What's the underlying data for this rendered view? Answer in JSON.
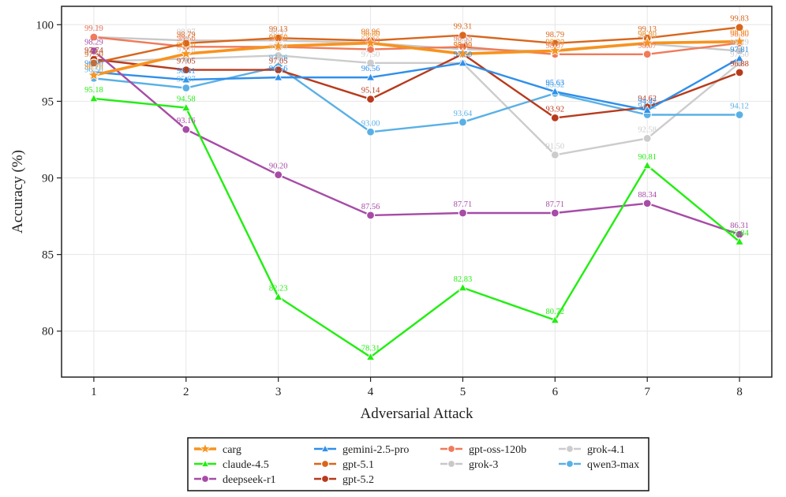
{
  "chart_data": {
    "type": "line",
    "title": "",
    "xlabel": "Adversarial Attack",
    "ylabel": "Accuracy (%)",
    "x": [
      1,
      2,
      3,
      4,
      5,
      6,
      7,
      8
    ],
    "x_ticks": [
      "1",
      "2",
      "3",
      "4",
      "5",
      "6",
      "7",
      "8"
    ],
    "ylim": [
      77,
      101.2
    ],
    "y_ticks": [
      80,
      85,
      90,
      95,
      100
    ],
    "grid": true,
    "legend_position": "bottom",
    "series": [
      {
        "name": "carg",
        "color": "#f7931e",
        "marker": "star",
        "values": [
          96.7,
          98.1,
          98.6,
          98.8,
          98.1,
          98.3,
          98.8,
          98.9
        ],
        "labels": [
          "96.70",
          "98.10",
          "98.60",
          "98.80",
          "98.10",
          "98.30",
          "98.80",
          "98.90"
        ]
      },
      {
        "name": "claude-4.5",
        "color": "#22ee11",
        "marker": "triangle",
        "values": [
          95.18,
          94.58,
          82.23,
          78.31,
          82.83,
          80.72,
          90.81,
          85.84
        ],
        "labels": [
          "95.18",
          "94.58",
          "82.23",
          "78.31",
          "82.83",
          "80.72",
          "90.81",
          "85.84"
        ]
      },
      {
        "name": "deepseek-r1",
        "color": "#a64ca6",
        "marker": "circle",
        "values": [
          98.29,
          93.16,
          90.2,
          87.56,
          87.71,
          87.71,
          88.34,
          86.31
        ],
        "labels": [
          "98.29",
          "93.16",
          "90.20",
          "87.56",
          "87.71",
          "87.71",
          "88.34",
          "86.31"
        ]
      },
      {
        "name": "gemini-2.5-pro",
        "color": "#2f8fea",
        "marker": "triangle",
        "values": [
          96.9,
          96.41,
          96.56,
          96.56,
          97.5,
          95.63,
          94.42,
          97.81
        ],
        "labels": [
          "96.90",
          "96.41",
          "96.56",
          "96.56",
          "97.50",
          "95.63",
          "94.42",
          "97.81"
        ]
      },
      {
        "name": "gpt-5.1",
        "color": "#d8661c",
        "marker": "circle",
        "values": [
          97.5,
          98.79,
          99.13,
          98.96,
          99.31,
          98.79,
          99.13,
          99.83
        ],
        "labels": [
          "97.50",
          "98.79",
          "99.13",
          "98.96",
          "99.31",
          "98.79",
          "99.13",
          "99.83"
        ]
      },
      {
        "name": "gpt-5.2",
        "color": "#b83a1c",
        "marker": "circle",
        "values": [
          97.74,
          97.05,
          97.05,
          95.14,
          98.09,
          93.92,
          94.62,
          96.88
        ],
        "labels": [
          "97.74",
          "97.05",
          "97.05",
          "95.14",
          "98.09",
          "93.92",
          "94.62",
          "96.88"
        ]
      },
      {
        "name": "gpt-oss-120b",
        "color": "#f07a5a",
        "marker": "circle",
        "values": [
          99.19,
          98.56,
          98.55,
          98.39,
          98.55,
          98.07,
          98.07,
          98.8
        ],
        "labels": [
          "99.19",
          "98.56",
          "98.55",
          "98.39",
          "98.55",
          "98.07",
          "98.07",
          "98.80"
        ]
      },
      {
        "name": "grok-3",
        "color": "#c8c8c8",
        "marker": "circle",
        "values": [
          99.2,
          98.97,
          98.97,
          98.8,
          98.4,
          98.27,
          98.75,
          98.29
        ],
        "labels": [
          "99.20",
          "98.97",
          "98.97",
          "98.80",
          "98.40",
          "98.27",
          "98.75",
          "98.29"
        ]
      },
      {
        "name": "grok-4.1",
        "color": "#cccccc",
        "marker": "circle",
        "values": [
          97.6,
          97.78,
          97.99,
          97.5,
          97.5,
          91.5,
          92.58,
          97.5
        ],
        "labels": [
          "97.60",
          "97.78",
          "97.99",
          "97.50",
          "97.50",
          "91.50",
          "92.58",
          "97.50"
        ]
      },
      {
        "name": "qwen3-max",
        "color": "#5ab0e5",
        "marker": "circle",
        "values": [
          96.5,
          95.87,
          97.26,
          93.0,
          93.64,
          95.52,
          94.12,
          94.12
        ],
        "labels": [
          "96.50",
          "95.87",
          "97.26",
          "93.00",
          "93.64",
          "95.52",
          "94.12",
          "94.12"
        ]
      }
    ],
    "legend_order": [
      "carg",
      "gemini-2.5-pro",
      "gpt-oss-120b",
      "grok-4.1",
      "claude-4.5",
      "gpt-5.1",
      "grok-3",
      "qwen3-max",
      "deepseek-r1",
      "gpt-5.2"
    ]
  }
}
